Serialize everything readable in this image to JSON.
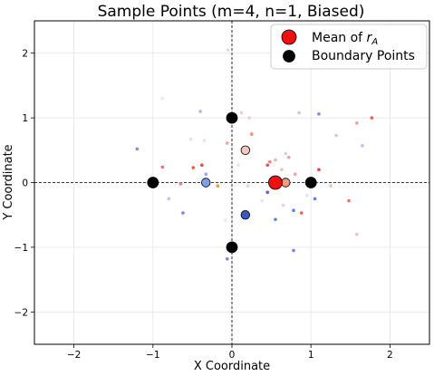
{
  "chart_data": {
    "type": "scatter",
    "title": "Sample Points (m=4, n=1, Biased)",
    "xlabel": "X Coordinate",
    "ylabel": "Y Coordinate",
    "xlim": [
      -2.5,
      2.5
    ],
    "ylim": [
      -2.5,
      2.5
    ],
    "x_ticks": [
      -2,
      -1,
      0,
      1,
      2
    ],
    "y_ticks": [
      -2,
      -1,
      0,
      1,
      2
    ],
    "x_tick_labels": [
      "−2",
      "−1",
      "0",
      "1",
      "2"
    ],
    "y_tick_labels": [
      "−2",
      "−1",
      "0",
      "1",
      "2"
    ],
    "grid": true,
    "reference_lines": {
      "x": 0,
      "y": 0,
      "style": "dashed"
    },
    "legend_position": "top-right",
    "legend": [
      {
        "label_prefix": "Mean of ",
        "label_math_base": "r",
        "label_math_sub": "A",
        "marker": "mean",
        "color": "#ee1111"
      },
      {
        "label": "Boundary Points",
        "marker": "boundary",
        "color": "#000000"
      }
    ],
    "series": [
      {
        "name": "Boundary Points",
        "color": "#000000",
        "points": [
          {
            "x": 0,
            "y": 1
          },
          {
            "x": -1,
            "y": 0
          },
          {
            "x": 1,
            "y": 0
          },
          {
            "x": 0,
            "y": -1
          }
        ]
      },
      {
        "name": "Mean of r_A",
        "color": "#ee1111",
        "points": [
          {
            "x": 0.55,
            "y": 0.0
          }
        ]
      },
      {
        "name": "samples_large",
        "points": [
          {
            "x": 0.17,
            "y": 0.5,
            "color": "#f2c9bf"
          },
          {
            "x": -0.33,
            "y": 0.0,
            "color": "#7ba2e8"
          },
          {
            "x": 0.68,
            "y": 0.0,
            "color": "#f09a80"
          },
          {
            "x": 0.17,
            "y": -0.5,
            "color": "#3a57c4"
          }
        ]
      },
      {
        "name": "samples_small",
        "points": [
          {
            "x": -0.05,
            "y": 2.05,
            "color": "#d8d8f0"
          },
          {
            "x": -0.88,
            "y": 1.3,
            "color": "#e6e6f6"
          },
          {
            "x": -0.4,
            "y": 1.1,
            "color": "#b3b3f0"
          },
          {
            "x": 0.12,
            "y": 1.08,
            "color": "#f0c8c8"
          },
          {
            "x": 0.22,
            "y": 1.0,
            "color": "#f0d0d0"
          },
          {
            "x": 0.85,
            "y": 1.08,
            "color": "#c8c8f0"
          },
          {
            "x": 1.1,
            "y": 1.06,
            "color": "#8a8ae0"
          },
          {
            "x": 1.77,
            "y": 1.0,
            "color": "#f06060"
          },
          {
            "x": 1.58,
            "y": 0.92,
            "color": "#f0a0a0"
          },
          {
            "x": -1.2,
            "y": 0.52,
            "color": "#8a8ae8"
          },
          {
            "x": -0.06,
            "y": 0.61,
            "color": "#f0a0a0"
          },
          {
            "x": 0.25,
            "y": 0.75,
            "color": "#f09060"
          },
          {
            "x": -0.35,
            "y": 0.65,
            "color": "#f0e0e0"
          },
          {
            "x": -0.52,
            "y": 0.67,
            "color": "#e0e0f6"
          },
          {
            "x": 1.32,
            "y": 0.73,
            "color": "#f0c0c0"
          },
          {
            "x": 1.65,
            "y": 0.57,
            "color": "#c0c0f0"
          },
          {
            "x": 0.68,
            "y": 0.45,
            "color": "#d0d0f0"
          },
          {
            "x": 0.72,
            "y": 0.39,
            "color": "#f0a0a0"
          },
          {
            "x": 0.08,
            "y": 0.27,
            "color": "#f0e0e0"
          },
          {
            "x": -0.49,
            "y": 0.23,
            "color": "#f06040"
          },
          {
            "x": -0.38,
            "y": 0.27,
            "color": "#f04040"
          },
          {
            "x": -0.88,
            "y": 0.24,
            "color": "#f07070"
          },
          {
            "x": 0.45,
            "y": 0.27,
            "color": "#f05050"
          },
          {
            "x": 0.48,
            "y": 0.32,
            "color": "#f08080"
          },
          {
            "x": 0.55,
            "y": 0.35,
            "color": "#f0b0b0"
          },
          {
            "x": 0.63,
            "y": 0.2,
            "color": "#f0c0c0"
          },
          {
            "x": 0.8,
            "y": 0.13,
            "color": "#f0a0a0"
          },
          {
            "x": 1.1,
            "y": 0.2,
            "color": "#f04040"
          },
          {
            "x": -0.33,
            "y": 0.13,
            "color": "#a0a0f0"
          },
          {
            "x": -0.65,
            "y": -0.02,
            "color": "#f08080"
          },
          {
            "x": -0.18,
            "y": -0.05,
            "color": "#f0a040"
          },
          {
            "x": 0.2,
            "y": -0.05,
            "color": "#f0d0d0"
          },
          {
            "x": 0.45,
            "y": -0.15,
            "color": "#6060e0"
          },
          {
            "x": 1.05,
            "y": -0.25,
            "color": "#6080f0"
          },
          {
            "x": 1.25,
            "y": -0.05,
            "color": "#f0c0c0"
          },
          {
            "x": 1.48,
            "y": -0.28,
            "color": "#f07070"
          },
          {
            "x": -0.8,
            "y": -0.25,
            "color": "#c0c0f0"
          },
          {
            "x": -0.62,
            "y": -0.47,
            "color": "#8080e0"
          },
          {
            "x": 0.38,
            "y": -0.28,
            "color": "#f0e0e0"
          },
          {
            "x": 0.65,
            "y": -0.35,
            "color": "#f0d0d0"
          },
          {
            "x": 0.78,
            "y": -0.43,
            "color": "#6080e0"
          },
          {
            "x": 0.88,
            "y": -0.47,
            "color": "#f06060"
          },
          {
            "x": 0.55,
            "y": -0.57,
            "color": "#7080e8"
          },
          {
            "x": -0.08,
            "y": -0.58,
            "color": "#e8e8f8"
          },
          {
            "x": 1.58,
            "y": -0.8,
            "color": "#f0c0c0"
          },
          {
            "x": 0.78,
            "y": -1.05,
            "color": "#8080e0"
          },
          {
            "x": -0.06,
            "y": -1.18,
            "color": "#8080e0"
          },
          {
            "x": 0.95,
            "y": -0.2,
            "color": "#e0e0f8"
          }
        ]
      }
    ]
  }
}
